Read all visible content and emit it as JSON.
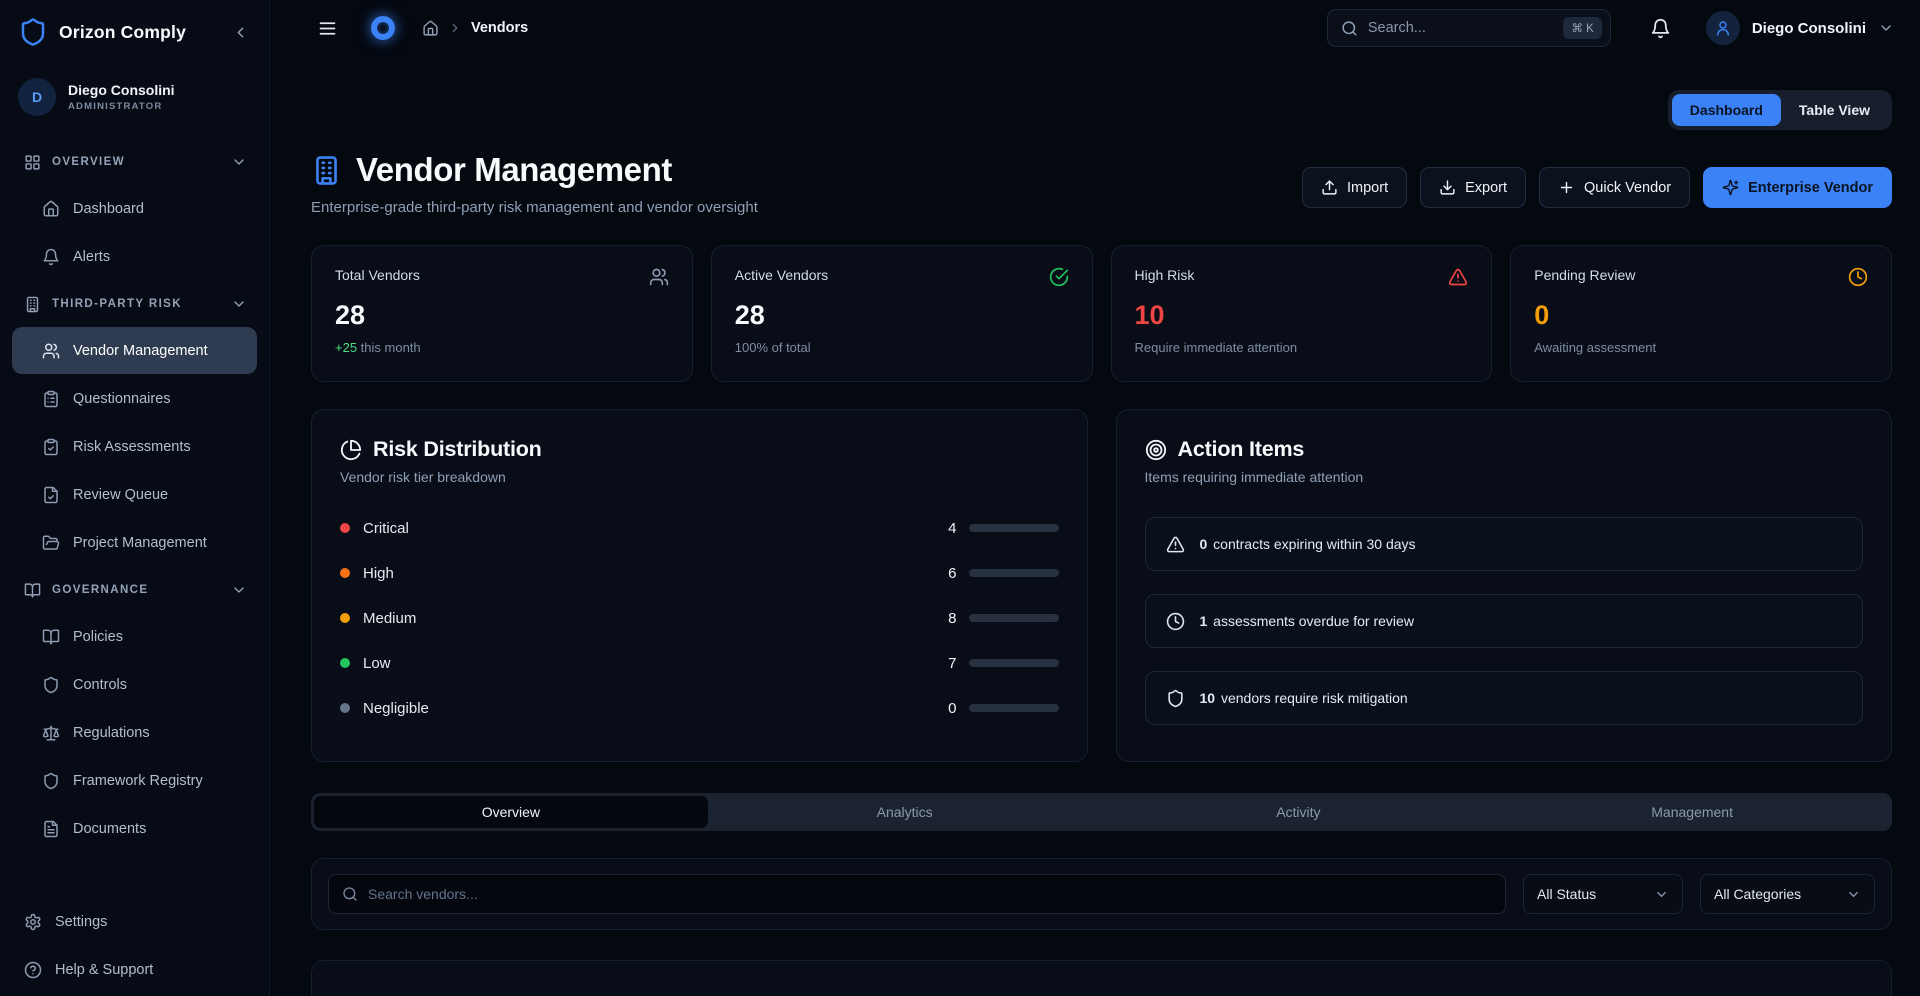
{
  "brand": {
    "name": "Orizon Comply",
    "logo_icon": "shield-icon"
  },
  "sidebar": {
    "user": {
      "initial": "D",
      "name": "Diego Consolini",
      "role": "ADMINISTRATOR"
    },
    "sections": [
      {
        "label": "OVERVIEW",
        "icon": "grid-icon",
        "items": [
          {
            "label": "Dashboard",
            "icon": "home-icon",
            "active": false
          },
          {
            "label": "Alerts",
            "icon": "bell-icon",
            "active": false
          }
        ]
      },
      {
        "label": "THIRD-PARTY RISK",
        "icon": "building-icon",
        "items": [
          {
            "label": "Vendor Management",
            "icon": "users-icon",
            "active": true
          },
          {
            "label": "Questionnaires",
            "icon": "clipboard-list-icon",
            "active": false
          },
          {
            "label": "Risk Assessments",
            "icon": "clipboard-check-icon",
            "active": false
          },
          {
            "label": "Review Queue",
            "icon": "file-check-icon",
            "active": false
          },
          {
            "label": "Project Management",
            "icon": "folder-open-icon",
            "active": false
          }
        ]
      },
      {
        "label": "GOVERNANCE",
        "icon": "book-open-icon",
        "items": [
          {
            "label": "Policies",
            "icon": "book-open-icon",
            "active": false
          },
          {
            "label": "Controls",
            "icon": "shield-icon",
            "active": false
          },
          {
            "label": "Regulations",
            "icon": "scale-icon",
            "active": false
          },
          {
            "label": "Framework Registry",
            "icon": "shield-icon",
            "active": false
          },
          {
            "label": "Documents",
            "icon": "file-text-icon",
            "active": false
          }
        ]
      }
    ],
    "footer_items": [
      {
        "label": "Settings",
        "icon": "gear-icon"
      },
      {
        "label": "Help & Support",
        "icon": "help-icon"
      }
    ]
  },
  "topbar": {
    "breadcrumb": {
      "current": "Vendors"
    },
    "search": {
      "placeholder": "Search...",
      "shortcut": "⌘ K"
    },
    "user_menu": {
      "name": "Diego Consolini"
    }
  },
  "view_toggle": {
    "options": [
      "Dashboard",
      "Table View"
    ],
    "active": "Dashboard"
  },
  "header": {
    "title": "Vendor Management",
    "icon": "building-icon",
    "subtitle": "Enterprise-grade third-party risk management and vendor oversight",
    "actions": [
      {
        "label": "Import",
        "icon": "upload-icon",
        "style": "outline"
      },
      {
        "label": "Export",
        "icon": "download-icon",
        "style": "outline"
      },
      {
        "label": "Quick Vendor",
        "icon": "plus-icon",
        "style": "outline"
      },
      {
        "label": "Enterprise Vendor",
        "icon": "sparkles-icon",
        "style": "primary"
      }
    ]
  },
  "stat_cards": [
    {
      "label": "Total Vendors",
      "value": "28",
      "value_color": "#f8fafc",
      "icon": "users-icon",
      "icon_color": "#8b98ad",
      "sub_prefix": "+25",
      "sub_prefix_color": "#4ade80",
      "sub": " this month"
    },
    {
      "label": "Active Vendors",
      "value": "28",
      "value_color": "#f8fafc",
      "icon": "check-circle-icon",
      "icon_color": "#22c55e",
      "sub_prefix": "",
      "sub_prefix_color": "",
      "sub": "100% of total"
    },
    {
      "label": "High Risk",
      "value": "10",
      "value_color": "#ef4444",
      "icon": "alert-triangle-icon",
      "icon_color": "#ef4444",
      "sub_prefix": "",
      "sub_prefix_color": "",
      "sub": "Require immediate attention"
    },
    {
      "label": "Pending Review",
      "value": "0",
      "value_color": "#f59e0b",
      "icon": "clock-icon",
      "icon_color": "#f59e0b",
      "sub_prefix": "",
      "sub_prefix_color": "",
      "sub": "Awaiting assessment"
    }
  ],
  "risk_distribution": {
    "title": "Risk Distribution",
    "icon": "pie-chart-icon",
    "subtitle": "Vendor risk tier breakdown",
    "total": 28,
    "bar_color": "#3b82f6",
    "rows": [
      {
        "label": "Critical",
        "count": 4,
        "dot_color": "#ef4444"
      },
      {
        "label": "High",
        "count": 6,
        "dot_color": "#f97316"
      },
      {
        "label": "Medium",
        "count": 8,
        "dot_color": "#f59e0b"
      },
      {
        "label": "Low",
        "count": 7,
        "dot_color": "#22c55e"
      },
      {
        "label": "Negligible",
        "count": 0,
        "dot_color": "#64748b"
      }
    ]
  },
  "action_items": {
    "title": "Action Items",
    "icon": "target-icon",
    "subtitle": "Items requiring immediate attention",
    "items": [
      {
        "count": "0",
        "text": "contracts expiring within 30 days",
        "icon": "alert-triangle-icon"
      },
      {
        "count": "1",
        "text": "assessments overdue for review",
        "icon": "clock-icon"
      },
      {
        "count": "10",
        "text": "vendors require risk mitigation",
        "icon": "shield-icon"
      }
    ]
  },
  "tabs": {
    "items": [
      "Overview",
      "Analytics",
      "Activity",
      "Management"
    ],
    "active": "Overview"
  },
  "filters": {
    "search_placeholder": "Search vendors...",
    "status_filter": "All Status",
    "category_filter": "All Categories"
  },
  "colors": {
    "accent": "#3b82f6",
    "danger": "#ef4444",
    "warning": "#f59e0b",
    "success": "#22c55e"
  }
}
